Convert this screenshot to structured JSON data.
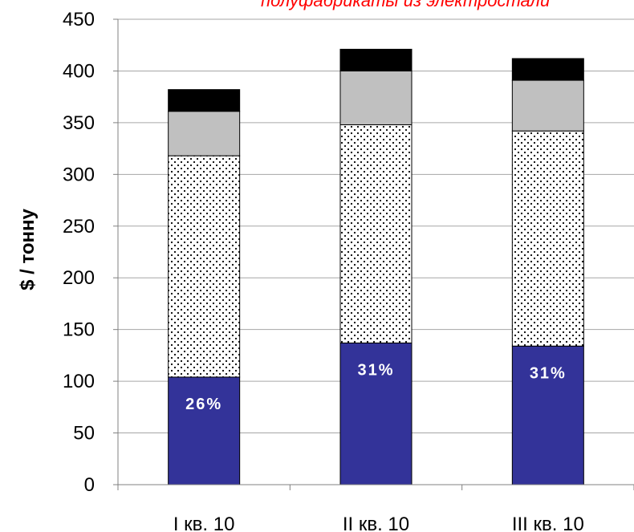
{
  "chart_data": {
    "type": "bar",
    "stacked": true,
    "title": "полуфабрикаты из электростали",
    "ylabel": "$ / тонну",
    "xlabel": "",
    "ylim": [
      0,
      450
    ],
    "yticks": [
      0,
      50,
      100,
      150,
      200,
      250,
      300,
      350,
      400,
      450
    ],
    "grid": true,
    "categories": [
      "I кв. 10",
      "II кв. 10",
      "III кв. 10"
    ],
    "series": [
      {
        "color": "#333399",
        "pattern": "solid",
        "values": [
          104,
          137,
          134
        ]
      },
      {
        "color": "#ffffff",
        "pattern": "dots",
        "values": [
          214,
          211,
          208
        ]
      },
      {
        "color": "#c0c0c0",
        "pattern": "solid",
        "values": [
          43,
          52,
          49
        ]
      },
      {
        "color": "#000000",
        "pattern": "solid",
        "values": [
          21,
          21,
          21
        ]
      }
    ],
    "annotations": [
      "26%",
      "31%",
      "31%"
    ],
    "colors": {
      "title": "#ff0000",
      "grid": "#a6a6a6",
      "axis": "#808080"
    }
  }
}
